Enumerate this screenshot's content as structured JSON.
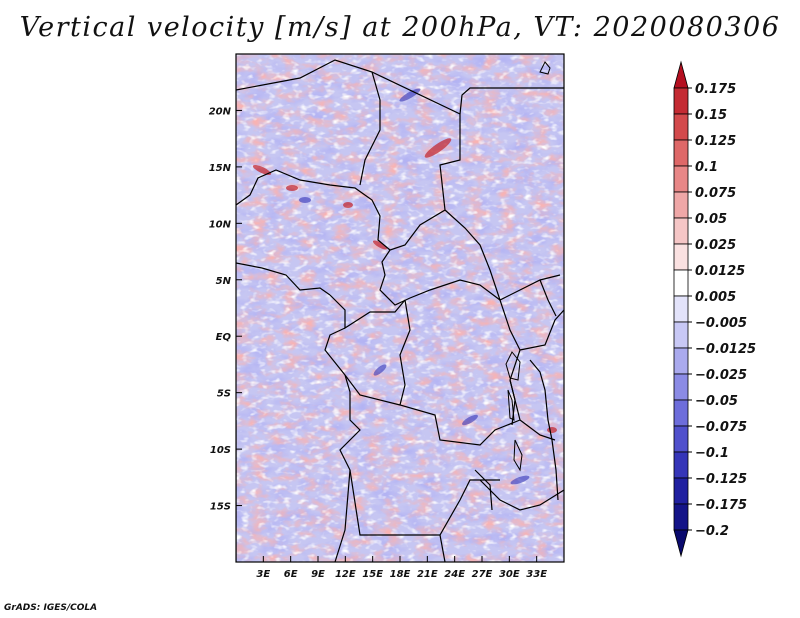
{
  "title": "Vertical velocity [m/s] at 200hPa, VT: 2020080306",
  "credit": "GrADS: IGES/COLA",
  "map": {
    "lon_range": [
      0,
      36
    ],
    "lat_range": [
      -20,
      25
    ],
    "lon_ticks": [
      {
        "value": 3,
        "label": "3E"
      },
      {
        "value": 6,
        "label": "6E"
      },
      {
        "value": 9,
        "label": "9E"
      },
      {
        "value": 12,
        "label": "12E"
      },
      {
        "value": 15,
        "label": "15E"
      },
      {
        "value": 18,
        "label": "18E"
      },
      {
        "value": 21,
        "label": "21E"
      },
      {
        "value": 24,
        "label": "24E"
      },
      {
        "value": 27,
        "label": "27E"
      },
      {
        "value": 30,
        "label": "30E"
      },
      {
        "value": 33,
        "label": "33E"
      }
    ],
    "lat_ticks": [
      {
        "value": 20,
        "label": "20N"
      },
      {
        "value": 15,
        "label": "15N"
      },
      {
        "value": 10,
        "label": "10N"
      },
      {
        "value": 5,
        "label": "5N"
      },
      {
        "value": 0,
        "label": "EQ"
      },
      {
        "value": -5,
        "label": "5S"
      },
      {
        "value": -10,
        "label": "10S"
      },
      {
        "value": -15,
        "label": "15S"
      }
    ]
  },
  "colorbar": {
    "levels": [
      "0.175",
      "0.15",
      "0.125",
      "0.1",
      "0.075",
      "0.05",
      "0.025",
      "0.0125",
      "0.005",
      "−0.005",
      "−0.0125",
      "−0.025",
      "−0.05",
      "−0.075",
      "−0.1",
      "−0.125",
      "−0.175",
      "−0.2"
    ],
    "colors": [
      "#b40f20",
      "#c42b33",
      "#d34a4c",
      "#de6868",
      "#e88787",
      "#efa7a7",
      "#f5c6c6",
      "#fae1e1",
      "#ffffff",
      "#e3e3fa",
      "#c8c8f5",
      "#aaaaee",
      "#8b8be5",
      "#6d6ddb",
      "#5050cc",
      "#3535b8",
      "#2020a0",
      "#141488",
      "#0a0a6e"
    ]
  }
}
